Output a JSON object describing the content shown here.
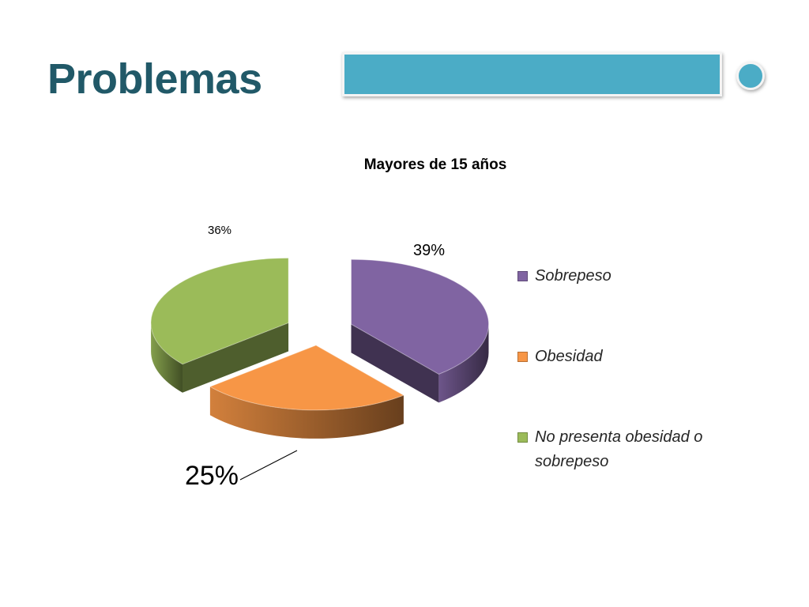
{
  "slide": {
    "title": "Problemas"
  },
  "colors": {
    "title": "#215968",
    "accent": "#4bacc6"
  },
  "chart_data": {
    "type": "pie",
    "three_d": true,
    "exploded": true,
    "title": "Mayores de 15 años",
    "categories": [
      "Sobrepeso",
      "Obesidad",
      "No presenta obesidad o sobrepeso"
    ],
    "values": [
      39,
      25,
      36
    ],
    "data_labels": [
      "39%",
      "25%",
      "36%"
    ],
    "colors": [
      "#8064a2",
      "#f79646",
      "#9bbb59"
    ],
    "legend_position": "right"
  }
}
